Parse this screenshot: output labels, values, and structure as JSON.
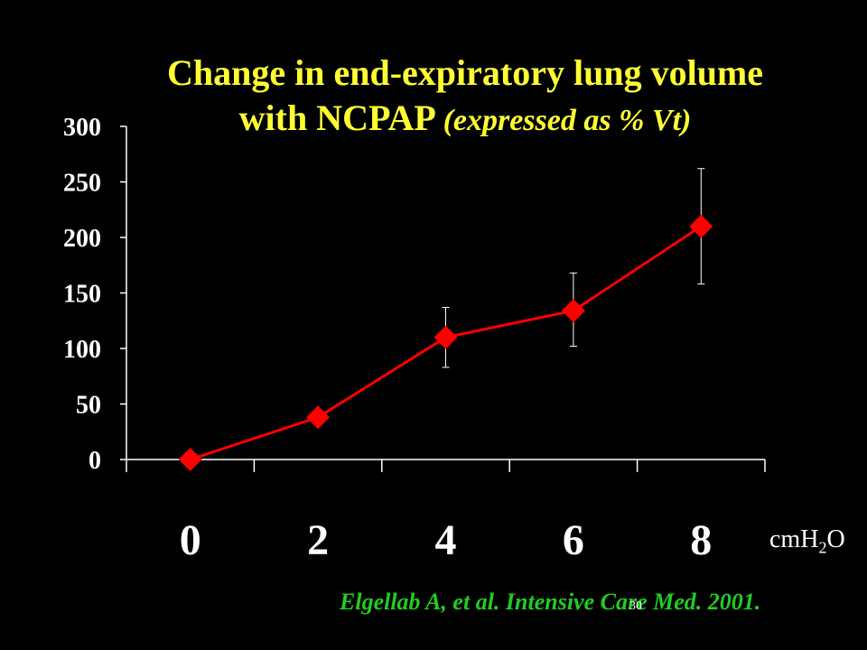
{
  "slide": {
    "title_line1": "Change in end-expiratory lung volume",
    "title_line2_main": "with NCPAP",
    "title_line2_italic": "(expressed as % Vt)",
    "unit_prefix": "cmH",
    "unit_sub": "2",
    "unit_suffix": "O",
    "citation": "Elgellab A, et al. Intensive Care Med. 2001.",
    "slide_number": "30"
  },
  "chart_data": {
    "type": "line",
    "title": "Change in end-expiratory lung volume with NCPAP (expressed as % Vt)",
    "xlabel": "cmH2O",
    "ylabel": "",
    "categories": [
      "0",
      "2",
      "4",
      "6",
      "8"
    ],
    "series": [
      {
        "values": [
          0,
          38,
          110,
          134,
          210
        ],
        "error_upper": [
          0,
          38,
          137,
          168,
          262
        ],
        "error_lower": [
          0,
          38,
          83,
          102,
          158
        ]
      }
    ],
    "ylim": [
      0,
      300
    ],
    "yticks": [
      0,
      50,
      100,
      150,
      200,
      250,
      300
    ],
    "grid": false,
    "legend": "none",
    "colors": {
      "line": "#ff0000",
      "marker": "#ff0000",
      "axis": "#ffffff",
      "error_bar": "#ffffff"
    }
  }
}
